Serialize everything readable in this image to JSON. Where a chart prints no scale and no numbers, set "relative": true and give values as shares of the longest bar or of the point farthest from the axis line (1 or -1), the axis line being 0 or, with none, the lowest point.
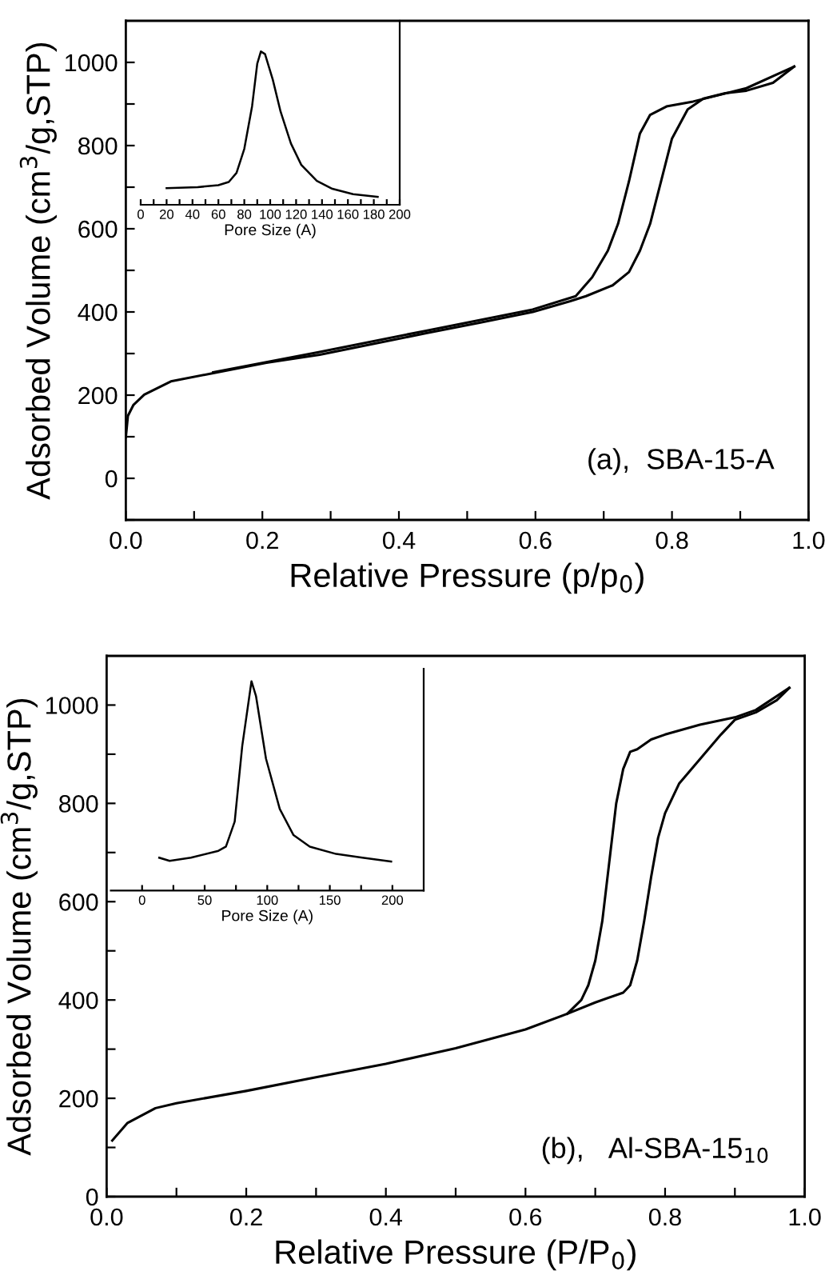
{
  "chart_data": [
    {
      "type": "line",
      "xlabel": "Relative Pressure (p/p$_{0}$)",
      "ylabel": "Adsorbed Volume (cm$^{3}$/g,STP)",
      "annotations": [
        "(a),  SBA-15-A"
      ],
      "xlim": [
        0,
        1.0
      ],
      "ylim": [
        -100,
        1100
      ],
      "xticks": [
        {
          "value": 0,
          "label": "0.0"
        },
        {
          "value": 0.1,
          "label": null
        },
        {
          "value": 0.2,
          "label": "0.2"
        },
        {
          "value": 0.3,
          "label": null
        },
        {
          "value": 0.4,
          "label": "0.4"
        },
        {
          "value": 0.5,
          "label": null
        },
        {
          "value": 0.6,
          "label": "0.6"
        },
        {
          "value": 0.7,
          "label": null
        },
        {
          "value": 0.8,
          "label": "0.8"
        },
        {
          "value": 0.9,
          "label": null
        },
        {
          "value": 1.0,
          "label": "1.0"
        }
      ],
      "yticks": [
        {
          "value": -100,
          "label": null
        },
        0,
        {
          "value": 100,
          "label": null
        },
        200,
        {
          "value": 300,
          "label": null
        },
        400,
        {
          "value": 500,
          "label": null
        },
        600,
        {
          "value": 700,
          "label": null
        },
        800,
        {
          "value": 900,
          "label": null
        },
        1000
      ],
      "series": [
        {
          "color": "#000000",
          "x": [
            0.0,
            0.003,
            0.011,
            0.027,
            0.066,
            0.128,
            0.206,
            0.284,
            0.362,
            0.44,
            0.518,
            0.596,
            0.651,
            0.674,
            0.713,
            0.737,
            0.753,
            0.768,
            0.784,
            0.8,
            0.823,
            0.846,
            0.878,
            0.909,
            0.948,
            0.979
          ],
          "values": [
            99,
            150,
            176,
            201,
            233,
            253,
            278,
            297,
            323,
            349,
            374,
            400,
            426,
            438,
            464,
            496,
            547,
            612,
            714,
            817,
            887,
            913,
            926,
            932,
            951,
            990
          ]
        },
        {
          "color": "#000000",
          "x": [
            0.979,
            0.909,
            0.831,
            0.792,
            0.768,
            0.753,
            0.737,
            0.721,
            0.706,
            0.683,
            0.659,
            0.596,
            0.44,
            0.284,
            0.128
          ],
          "values": [
            990,
            938,
            906,
            894,
            874,
            829,
            714,
            612,
            547,
            483,
            438,
            406,
            355,
            304,
            255
          ]
        }
      ]
    },
    {
      "type": "line",
      "xlabel": "Pore Size (A)",
      "relative": true,
      "xlim": [
        0,
        200
      ],
      "xticks": [
        0,
        {
          "value": 10,
          "label": null
        },
        20,
        {
          "value": 30,
          "label": null
        },
        40,
        {
          "value": 50,
          "label": null
        },
        60,
        {
          "value": 70,
          "label": null
        },
        80,
        {
          "value": 90,
          "label": null
        },
        100,
        {
          "value": 110,
          "label": null
        },
        120,
        {
          "value": 130,
          "label": null
        },
        140,
        {
          "value": 150,
          "label": null
        },
        160,
        {
          "value": 170,
          "label": null
        },
        180,
        {
          "value": 190,
          "label": null
        },
        200
      ],
      "series": [
        {
          "color": "#000000",
          "x": [
            20,
            44,
            60,
            68,
            74,
            80,
            86,
            90,
            92.8,
            96,
            102,
            108,
            116,
            124,
            136,
            148,
            164,
            183
          ],
          "values": [
            0.108,
            0.115,
            0.128,
            0.149,
            0.208,
            0.365,
            0.642,
            0.92,
            1.0,
            0.983,
            0.816,
            0.608,
            0.4,
            0.26,
            0.156,
            0.104,
            0.069,
            0.052
          ]
        }
      ]
    },
    {
      "type": "line",
      "xlabel": "Relative Pressure (P/P$_{0}$)",
      "ylabel": "Adsorbed Volume (cm$^{3}$/g,STP)",
      "annotations": [
        "(b),   Al-SBA-15$_{10}$"
      ],
      "xlim": [
        0,
        1.0
      ],
      "ylim": [
        0,
        1100
      ],
      "xticks": [
        {
          "value": 0,
          "label": "0.0"
        },
        {
          "value": 0.1,
          "label": null
        },
        {
          "value": 0.2,
          "label": "0.2"
        },
        {
          "value": 0.3,
          "label": null
        },
        {
          "value": 0.4,
          "label": "0.4"
        },
        {
          "value": 0.5,
          "label": null
        },
        {
          "value": 0.6,
          "label": "0.6"
        },
        {
          "value": 0.7,
          "label": null
        },
        {
          "value": 0.8,
          "label": "0.8"
        },
        {
          "value": 0.9,
          "label": null
        },
        {
          "value": 1.0,
          "label": "1.0"
        }
      ],
      "yticks": [
        0,
        {
          "value": 100,
          "label": null
        },
        200,
        {
          "value": 300,
          "label": null
        },
        400,
        {
          "value": 500,
          "label": null
        },
        600,
        {
          "value": 700,
          "label": null
        },
        800,
        {
          "value": 900,
          "label": null
        },
        1000
      ],
      "series": [
        {
          "color": "#000000",
          "x": [
            0.008,
            0.03,
            0.07,
            0.1,
            0.2,
            0.3,
            0.4,
            0.5,
            0.6,
            0.66,
            0.7,
            0.74,
            0.75,
            0.76,
            0.77,
            0.78,
            0.79,
            0.8,
            0.82,
            0.85,
            0.88,
            0.9,
            0.93,
            0.96,
            0.978
          ],
          "values": [
            114,
            150,
            180,
            190,
            215,
            243,
            270,
            302,
            340,
            372,
            395,
            415,
            430,
            480,
            560,
            650,
            730,
            780,
            840,
            890,
            940,
            970,
            985,
            1010,
            1035
          ]
        },
        {
          "color": "#000000",
          "x": [
            0.978,
            0.93,
            0.9,
            0.85,
            0.8,
            0.78,
            0.76,
            0.75,
            0.74,
            0.73,
            0.72,
            0.71,
            0.7,
            0.69,
            0.68,
            0.66
          ],
          "values": [
            1035,
            990,
            975,
            960,
            940,
            930,
            910,
            905,
            870,
            800,
            680,
            560,
            480,
            430,
            400,
            372
          ]
        }
      ]
    },
    {
      "type": "line",
      "xlabel": "Pore Size (A)",
      "relative": true,
      "xlim": [
        -25,
        225
      ],
      "xticks": [
        0,
        {
          "value": 25,
          "label": null
        },
        50,
        {
          "value": 75,
          "label": null
        },
        100,
        {
          "value": 125,
          "label": null
        },
        150,
        {
          "value": 175,
          "label": null
        },
        200
      ],
      "series": [
        {
          "color": "#000000",
          "x": [
            13.7,
            22,
            39,
            61,
            67,
            74,
            80,
            87.4,
            91,
            99,
            110,
            121,
            134,
            155,
            176,
            199
          ],
          "values": [
            0.157,
            0.142,
            0.157,
            0.19,
            0.21,
            0.33,
            0.69,
            1.0,
            0.93,
            0.63,
            0.39,
            0.265,
            0.21,
            0.175,
            0.157,
            0.139
          ]
        }
      ]
    }
  ]
}
